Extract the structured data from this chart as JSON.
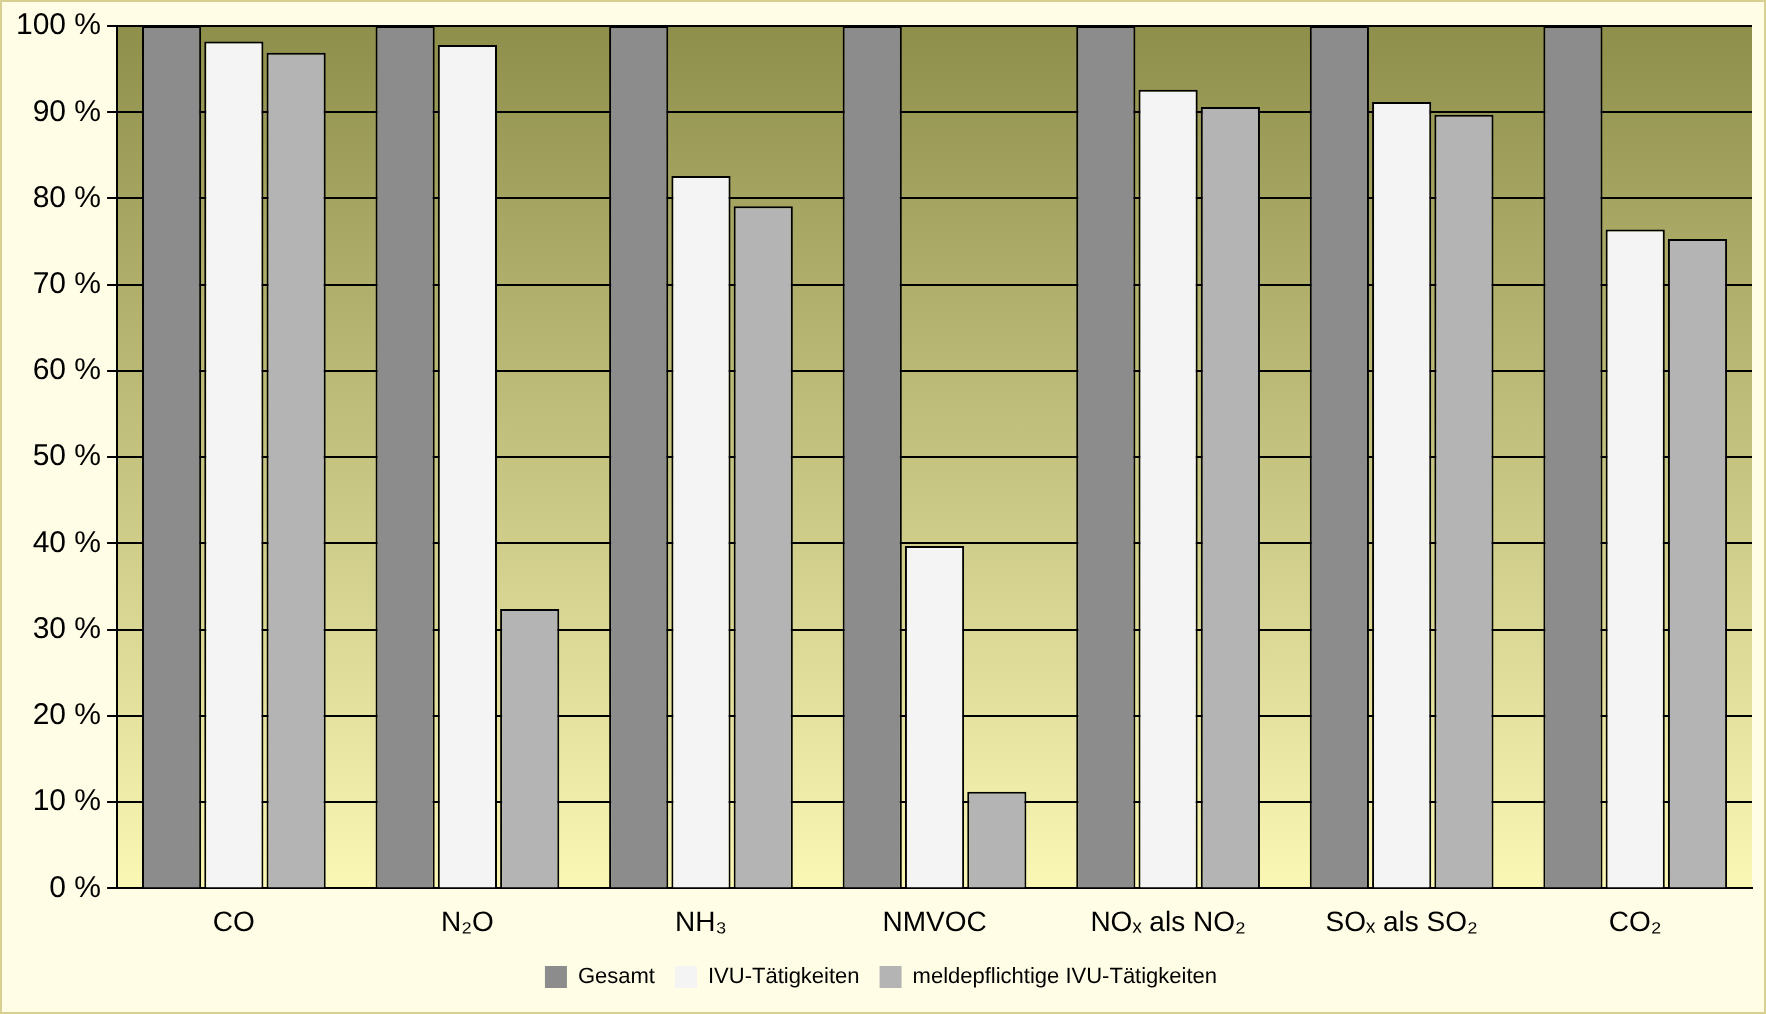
{
  "chart_data": {
    "type": "bar",
    "categories": [
      "CO",
      "N₂O",
      "NH₃",
      "NMVOC",
      "NOₓ als NO₂",
      "SOₓ als SO₂",
      "CO₂"
    ],
    "series": [
      {
        "name": "Gesamt",
        "color": "#8c8c8c",
        "values": [
          100,
          100,
          100,
          100,
          100,
          100,
          100
        ]
      },
      {
        "name": "IVU-Tätigkeiten",
        "color": "#f4f4f4",
        "values": [
          98.2,
          97.8,
          82.6,
          39.7,
          92.6,
          91.2,
          76.4
        ]
      },
      {
        "name": "meldepflichtige IVU-Tätigkeiten",
        "color": "#b4b4b4",
        "values": [
          96.9,
          32.4,
          79.1,
          11.2,
          90.6,
          89.7,
          75.3
        ]
      }
    ],
    "ylim": [
      0,
      100
    ],
    "yticks": [
      {
        "value": 0,
        "label": "0 %"
      },
      {
        "value": 10,
        "label": "10 %"
      },
      {
        "value": 20,
        "label": "20 %"
      },
      {
        "value": 30,
        "label": "30 %"
      },
      {
        "value": 40,
        "label": "40 %"
      },
      {
        "value": 50,
        "label": "50 %"
      },
      {
        "value": 60,
        "label": "60 %"
      },
      {
        "value": 70,
        "label": "70 %"
      },
      {
        "value": 80,
        "label": "80 %"
      },
      {
        "value": 90,
        "label": "90 %"
      },
      {
        "value": 100,
        "label": "100 %"
      }
    ],
    "grid": "y",
    "legend": "bottom"
  }
}
